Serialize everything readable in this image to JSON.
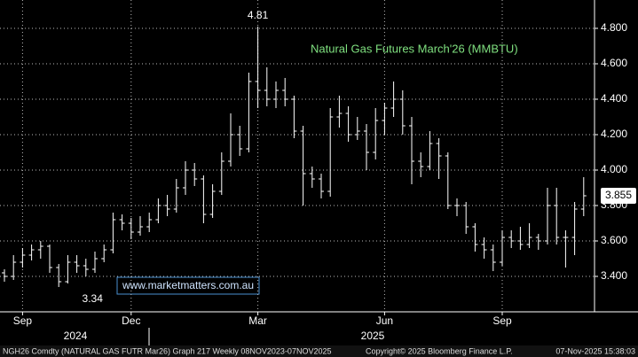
{
  "chart_data": {
    "type": "ohlc",
    "title": "Natural Gas Futures  March'26 (MMBTU)",
    "watermark": "www.marketmatters.com.au",
    "footer_left": "NGH26 Comdty (NATURAL GAS FUTR  Mar26) Graph 217 Weekly 08NOV2023-07NOV2025",
    "footer_center": "Copyright© 2025 Bloomberg Finance L.P.",
    "footer_right": "07-Nov-2025 15:38:03",
    "color": "#ffffff",
    "categories": [
      null,
      null,
      "Sep",
      null,
      null,
      null,
      null,
      null,
      null,
      null,
      null,
      null,
      null,
      null,
      "Dec",
      null,
      null,
      null,
      null,
      null,
      null,
      null,
      null,
      null,
      null,
      null,
      null,
      null,
      "Mar",
      null,
      null,
      null,
      null,
      null,
      null,
      null,
      null,
      null,
      null,
      null,
      null,
      null,
      "Jun",
      null,
      null,
      null,
      null,
      null,
      null,
      null,
      null,
      null,
      null,
      null,
      null,
      "Sep",
      null,
      null,
      null,
      null,
      null,
      null,
      null,
      null,
      null
    ],
    "year_labels": [
      "2024",
      "2025"
    ],
    "open": [
      3.42,
      3.4,
      3.48,
      3.52,
      3.55,
      3.57,
      3.45,
      3.37,
      3.48,
      3.46,
      3.44,
      3.5,
      3.55,
      3.72,
      3.7,
      3.65,
      3.68,
      3.72,
      3.8,
      3.78,
      3.9,
      4.0,
      3.95,
      3.75,
      3.88,
      4.05,
      4.2,
      4.12,
      4.5,
      4.45,
      4.4,
      4.45,
      4.4,
      4.22,
      3.98,
      3.95,
      3.88,
      4.3,
      4.32,
      4.2,
      4.22,
      4.1,
      4.28,
      4.35,
      4.4,
      4.25,
      4.05,
      4.02,
      4.15,
      4.08,
      3.8,
      3.8,
      3.68,
      3.58,
      3.55,
      3.48,
      3.62,
      3.6,
      3.58,
      3.62,
      3.6,
      3.8,
      3.62,
      3.62,
      3.78
    ],
    "high": [
      3.44,
      3.52,
      3.56,
      3.58,
      3.6,
      3.58,
      3.47,
      3.52,
      3.52,
      3.5,
      3.54,
      3.58,
      3.76,
      3.75,
      3.73,
      3.74,
      3.76,
      3.84,
      3.86,
      3.95,
      4.05,
      4.04,
      3.97,
      3.92,
      4.1,
      4.32,
      4.25,
      4.55,
      4.81,
      4.58,
      4.5,
      4.52,
      4.42,
      4.25,
      4.02,
      3.98,
      4.35,
      4.42,
      4.36,
      4.3,
      4.26,
      4.35,
      4.38,
      4.5,
      4.45,
      4.3,
      4.1,
      4.22,
      4.18,
      4.1,
      3.84,
      3.82,
      3.7,
      3.62,
      3.58,
      3.66,
      3.66,
      3.68,
      3.7,
      3.64,
      3.9,
      3.9,
      3.66,
      3.82,
      3.96
    ],
    "low": [
      3.37,
      3.38,
      3.45,
      3.49,
      3.5,
      3.42,
      3.34,
      3.36,
      3.42,
      3.4,
      3.42,
      3.48,
      3.53,
      3.66,
      3.61,
      3.63,
      3.65,
      3.7,
      3.74,
      3.76,
      3.86,
      3.91,
      3.7,
      3.73,
      3.86,
      4.02,
      4.08,
      4.1,
      4.35,
      4.36,
      4.35,
      4.36,
      4.18,
      3.8,
      3.9,
      3.84,
      3.85,
      4.24,
      4.16,
      4.17,
      4.0,
      4.06,
      4.2,
      4.3,
      4.2,
      3.92,
      3.96,
      4.0,
      3.95,
      3.78,
      3.74,
      3.64,
      3.54,
      3.5,
      3.43,
      3.46,
      3.56,
      3.55,
      3.56,
      3.55,
      3.58,
      3.58,
      3.45,
      3.52,
      3.74
    ],
    "close": [
      3.4,
      3.48,
      3.52,
      3.55,
      3.57,
      3.45,
      3.37,
      3.48,
      3.46,
      3.44,
      3.5,
      3.55,
      3.72,
      3.7,
      3.65,
      3.68,
      3.72,
      3.8,
      3.78,
      3.9,
      4.0,
      3.95,
      3.75,
      3.88,
      4.05,
      4.2,
      4.12,
      4.5,
      4.45,
      4.4,
      4.45,
      4.4,
      4.22,
      3.98,
      3.95,
      3.88,
      4.3,
      4.32,
      4.2,
      4.22,
      4.1,
      4.28,
      4.35,
      4.4,
      4.25,
      4.05,
      4.02,
      4.15,
      4.08,
      3.8,
      3.8,
      3.68,
      3.58,
      3.55,
      3.48,
      3.62,
      3.6,
      3.58,
      3.62,
      3.6,
      3.8,
      3.62,
      3.62,
      3.78,
      3.855
    ],
    "ylim": [
      3.2,
      4.96
    ],
    "yticks": [
      {
        "value": 3.4,
        "label": "3.400"
      },
      {
        "value": 3.6,
        "label": "3.600"
      },
      {
        "value": 3.8,
        "label": "3.800"
      },
      {
        "value": 4.0,
        "label": "4.000"
      },
      {
        "value": 4.2,
        "label": "4.200"
      },
      {
        "value": 4.4,
        "label": "4.400"
      },
      {
        "value": 4.6,
        "label": "4.600"
      },
      {
        "value": 4.8,
        "label": "4.800"
      }
    ],
    "grid": true
  }
}
